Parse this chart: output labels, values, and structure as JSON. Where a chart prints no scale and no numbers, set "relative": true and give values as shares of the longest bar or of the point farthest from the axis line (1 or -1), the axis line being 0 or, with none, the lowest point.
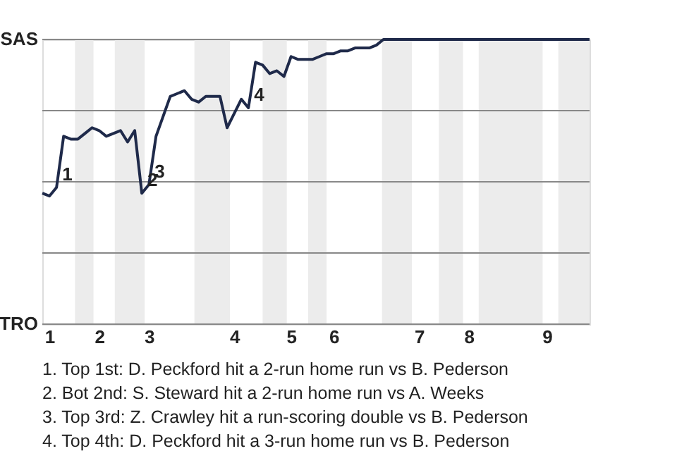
{
  "chart_data": {
    "type": "line",
    "relative": true,
    "categories": [
      null,
      "1",
      null,
      null,
      null,
      null,
      null,
      null,
      "2",
      null,
      null,
      null,
      null,
      null,
      null,
      "3",
      null,
      null,
      null,
      null,
      null,
      null,
      null,
      null,
      null,
      null,
      null,
      "4",
      null,
      null,
      null,
      null,
      null,
      null,
      null,
      "5",
      null,
      null,
      null,
      null,
      null,
      "6",
      null,
      null,
      null,
      null,
      null,
      null,
      null,
      null,
      null,
      null,
      null,
      "7",
      null,
      null,
      null,
      null,
      null,
      null,
      "8",
      null,
      null,
      null,
      null,
      null,
      null,
      null,
      null,
      null,
      null,
      "9",
      null,
      null,
      null,
      null,
      null,
      null
    ],
    "series": [
      {
        "color": "#1f2a4a",
        "values": [
          0.46,
          0.45,
          0.48,
          0.66,
          0.65,
          0.65,
          0.67,
          0.69,
          0.68,
          0.66,
          0.67,
          0.68,
          0.64,
          0.68,
          0.46,
          0.49,
          0.66,
          0.73,
          0.8,
          0.81,
          0.82,
          0.79,
          0.78,
          0.8,
          0.8,
          0.8,
          0.69,
          0.74,
          0.79,
          0.76,
          0.92,
          0.91,
          0.88,
          0.89,
          0.87,
          0.94,
          0.93,
          0.93,
          0.93,
          0.94,
          0.95,
          0.95,
          0.96,
          0.96,
          0.97,
          0.97,
          0.97,
          0.98,
          1,
          1,
          1,
          1,
          1,
          1,
          1,
          1,
          1,
          1,
          1,
          1,
          1,
          1,
          1,
          1,
          1,
          1,
          1,
          1,
          1,
          1,
          1,
          1,
          1,
          1,
          1,
          1,
          1,
          1
        ]
      }
    ],
    "legend": false,
    "marker": "none",
    "line_style": "solid",
    "ref_lines": [
      {
        "axis": "y",
        "value": 0,
        "color": "#888888"
      },
      {
        "axis": "y",
        "value": 0.25,
        "color": "#888888"
      },
      {
        "axis": "y",
        "value": 0.5,
        "color": "#888888"
      },
      {
        "axis": "y",
        "value": 0.75,
        "color": "#888888"
      },
      {
        "axis": "y",
        "value": 1,
        "color": "#888888"
      }
    ],
    "annotations": [
      "SAS",
      "TRO",
      {
        "text": "1",
        "y": 0.48
      },
      {
        "text": "2",
        "y": 0.46
      },
      {
        "text": "3",
        "y": 0.49
      },
      {
        "text": "4",
        "y": 0.76
      },
      "1. Top 1st: D. Peckford hit a 2-run home run vs B. Pederson",
      "2. Bot 2nd: S. Steward hit a 2-run home run vs A. Weeks",
      "3. Top 3rd: Z. Crawley hit a run-scoring double vs B. Pederson",
      "4. Top 4th: D. Peckford hit a 3-run home run vs B. Pederson"
    ]
  }
}
